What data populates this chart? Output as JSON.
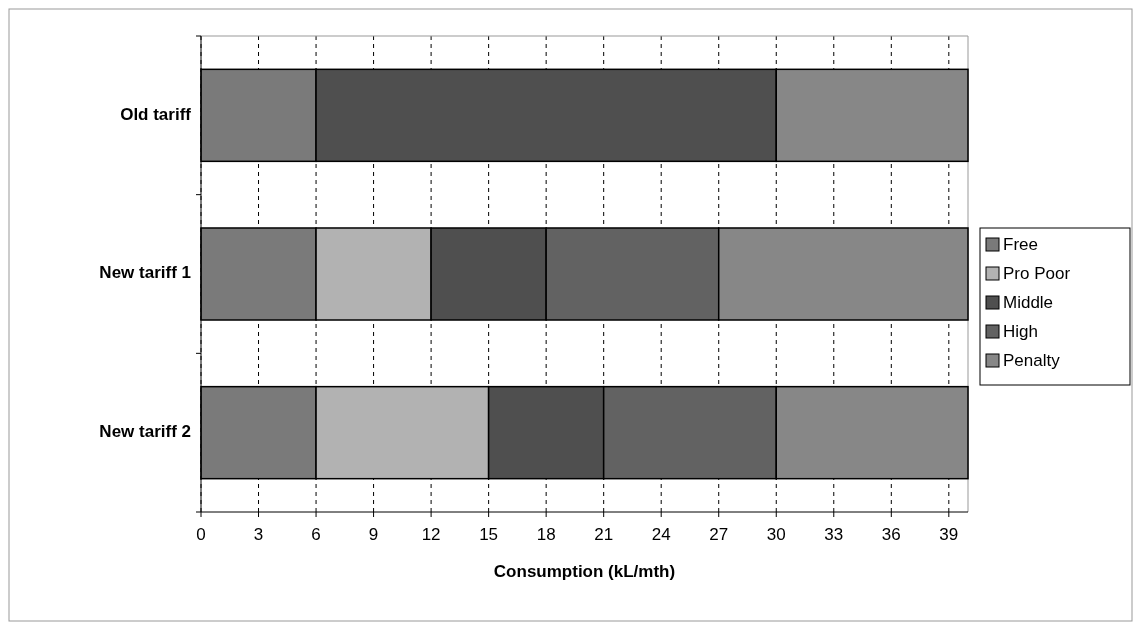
{
  "chart_data": {
    "type": "bar",
    "orientation": "horizontal",
    "stacked": true,
    "categories": [
      "Old tariff",
      "New tariff 1",
      "New tariff 2"
    ],
    "series": [
      {
        "name": "Free",
        "color": "#7a7a7a",
        "values": [
          6,
          6,
          6
        ]
      },
      {
        "name": "Pro Poor",
        "color": "#b2b2b2",
        "values": [
          0,
          6,
          9
        ]
      },
      {
        "name": "Middle",
        "color": "#4f4f4f",
        "values": [
          24,
          6,
          6
        ]
      },
      {
        "name": "High",
        "color": "#626262",
        "values": [
          0,
          9,
          9
        ]
      },
      {
        "name": "Penalty",
        "color": "#878787",
        "values": [
          10,
          13,
          10
        ]
      }
    ],
    "xlabel": "Consumption (kL/mth)",
    "xlim": [
      0,
      40
    ],
    "xticks": [
      0,
      3,
      6,
      9,
      12,
      15,
      18,
      21,
      24,
      27,
      30,
      33,
      36,
      39
    ],
    "grid": "x",
    "legend": "right"
  }
}
